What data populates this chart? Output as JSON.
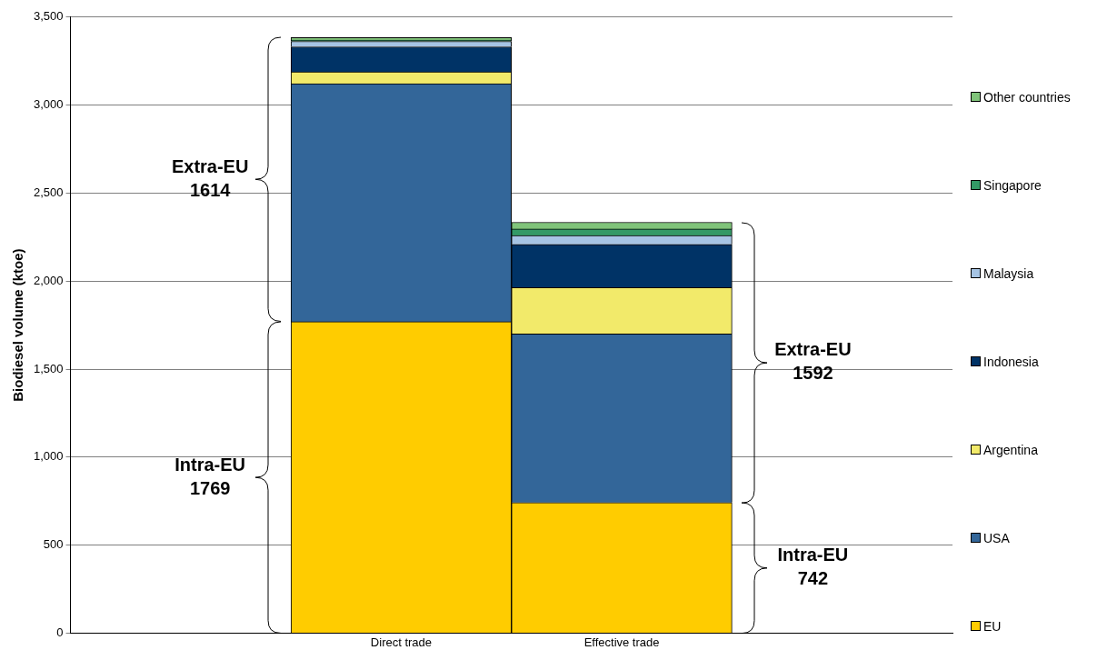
{
  "chart_data": {
    "type": "bar",
    "stacked": true,
    "ylabel": "Biodiesel volume (ktoe)",
    "categories": [
      "Direct trade",
      "Effective trade"
    ],
    "series": [
      {
        "name": "EU",
        "color": "#ffcc00",
        "values": [
          1769,
          742
        ]
      },
      {
        "name": "USA",
        "color": "#336699",
        "values": [
          1352,
          958
        ]
      },
      {
        "name": "Argentina",
        "color": "#f2ea6a",
        "values": [
          68,
          263
        ]
      },
      {
        "name": "Indonesia",
        "color": "#003366",
        "values": [
          142,
          246
        ]
      },
      {
        "name": "Malaysia",
        "color": "#a6c4e4",
        "values": [
          31,
          50
        ]
      },
      {
        "name": "Singapore",
        "color": "#339966",
        "values": [
          8,
          37
        ]
      },
      {
        "name": "Other countries",
        "color": "#80c47a",
        "values": [
          13,
          38
        ]
      }
    ],
    "ylim": [
      0,
      3500
    ],
    "yticks": [
      {
        "value": 0,
        "label": "0"
      },
      {
        "value": 500,
        "label": "500"
      },
      {
        "value": 1000,
        "label": "1,000"
      },
      {
        "value": 1500,
        "label": "1,500"
      },
      {
        "value": 2000,
        "label": "2,000"
      },
      {
        "value": 2500,
        "label": "2,500"
      },
      {
        "value": 3000,
        "label": "3,000"
      },
      {
        "value": 3500,
        "label": "3,500"
      }
    ],
    "grid": "y",
    "legend": "right",
    "annotations": [
      {
        "text": "Extra-EU\n1614",
        "x": "Direct trade",
        "y": 2576
      },
      {
        "text": "Intra-EU\n1769",
        "x": "Direct trade",
        "y": 885
      },
      {
        "text": "Extra-EU\n1592",
        "x": "Effective trade",
        "y": 1538
      },
      {
        "text": "Intra-EU\n742",
        "x": "Effective trade",
        "y": 371
      }
    ]
  }
}
